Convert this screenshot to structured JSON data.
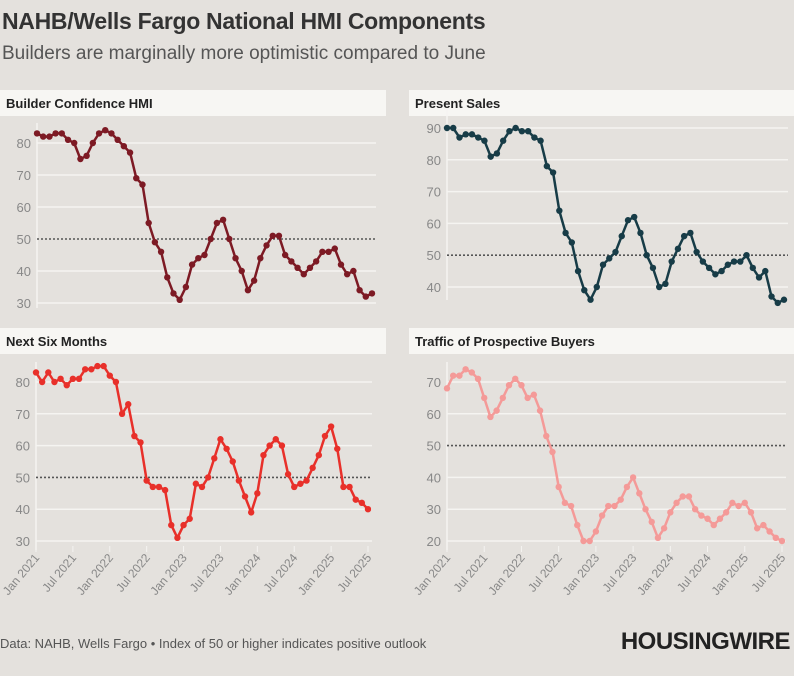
{
  "title": "NAHB/Wells Fargo National HMI Components",
  "subtitle": "Builders are marginally more optimistic compared to June",
  "footer": "Data: NAHB, Wells Fargo • Index of 50 or higher indicates positive outlook",
  "logo": "HOUSINGWIRE",
  "chart_data": [
    {
      "type": "line",
      "title": "Builder Confidence HMI",
      "color": "#7d1a24",
      "x_tick_labels": [
        "Jan 2021",
        "Jul 2021",
        "Jan 2022",
        "Jul 2022",
        "Jan 2023",
        "Jul 2023",
        "Jan 2024",
        "Jul 2024",
        "Jan 2025",
        "Jul 2025"
      ],
      "x_range": [
        "Jan 2021",
        "Jul 2025"
      ],
      "y_ticks": [
        30,
        40,
        50,
        60,
        70,
        80
      ],
      "reference_line": 50,
      "grid": true,
      "values": [
        83,
        82,
        82,
        83,
        83,
        81,
        80,
        75,
        76,
        80,
        83,
        84,
        83,
        81,
        79,
        77,
        69,
        67,
        55,
        49,
        46,
        38,
        33,
        31,
        35,
        42,
        44,
        45,
        50,
        55,
        56,
        50,
        44,
        40,
        34,
        37,
        44,
        48,
        51,
        51,
        45,
        43,
        41,
        39,
        41,
        43,
        46,
        46,
        47,
        42,
        39,
        40,
        34,
        32,
        33
      ]
    },
    {
      "type": "line",
      "title": "Present Sales",
      "color": "#173c47",
      "x_tick_labels": [],
      "y_ticks": [
        40,
        50,
        60,
        70,
        80,
        90
      ],
      "reference_line": 50,
      "grid": true,
      "values": [
        90,
        90,
        87,
        88,
        88,
        87,
        86,
        81,
        82,
        86,
        89,
        90,
        89,
        89,
        87,
        86,
        78,
        76,
        64,
        57,
        54,
        45,
        39,
        36,
        40,
        47,
        49,
        51,
        56,
        61,
        62,
        57,
        50,
        46,
        40,
        41,
        48,
        52,
        56,
        57,
        51,
        48,
        46,
        44,
        45,
        47,
        48,
        48,
        50,
        46,
        43,
        45,
        37,
        35,
        36
      ]
    },
    {
      "type": "line",
      "title": "Next Six Months",
      "color": "#e8302a",
      "x_tick_labels": [
        "Jan 2021",
        "Jul 2021",
        "Jan 2022",
        "Jul 2022",
        "Jan 2023",
        "Jul 2023",
        "Jan 2024",
        "Jul 2024",
        "Jan 2025",
        "Jul 2025"
      ],
      "y_ticks": [
        30,
        40,
        50,
        60,
        70,
        80
      ],
      "reference_line": 50,
      "grid": true,
      "values": [
        83,
        80,
        83,
        80,
        81,
        79,
        81,
        81,
        84,
        84,
        85,
        85,
        82,
        80,
        70,
        73,
        63,
        61,
        49,
        47,
        47,
        46,
        35,
        31,
        35,
        37,
        48,
        47,
        50,
        56,
        62,
        59,
        55,
        49,
        44,
        39,
        45,
        57,
        60,
        62,
        60,
        51,
        47,
        48,
        49,
        53,
        57,
        63,
        66,
        59,
        47,
        47,
        43,
        42,
        40
      ]
    },
    {
      "type": "line",
      "title": "Traffic of Prospective Buyers",
      "color": "#f49a98",
      "x_tick_labels": [
        "Jan 2021",
        "Jul 2021",
        "Jan 2022",
        "Jul 2022",
        "Jan 2023",
        "Jul 2023",
        "Jan 2024",
        "Jul 2024",
        "Jan 2025",
        "Jul 2025"
      ],
      "y_ticks": [
        20,
        30,
        40,
        50,
        60,
        70
      ],
      "reference_line": 50,
      "grid": true,
      "values": [
        68,
        72,
        72,
        74,
        73,
        71,
        65,
        59,
        61,
        65,
        69,
        71,
        69,
        65,
        66,
        61,
        53,
        48,
        37,
        32,
        31,
        25,
        20,
        20,
        23,
        28,
        31,
        31,
        33,
        37,
        40,
        35,
        30,
        26,
        21,
        24,
        29,
        32,
        34,
        34,
        30,
        28,
        27,
        25,
        27,
        29,
        32,
        31,
        32,
        29,
        24,
        25,
        23,
        21,
        20
      ]
    }
  ]
}
